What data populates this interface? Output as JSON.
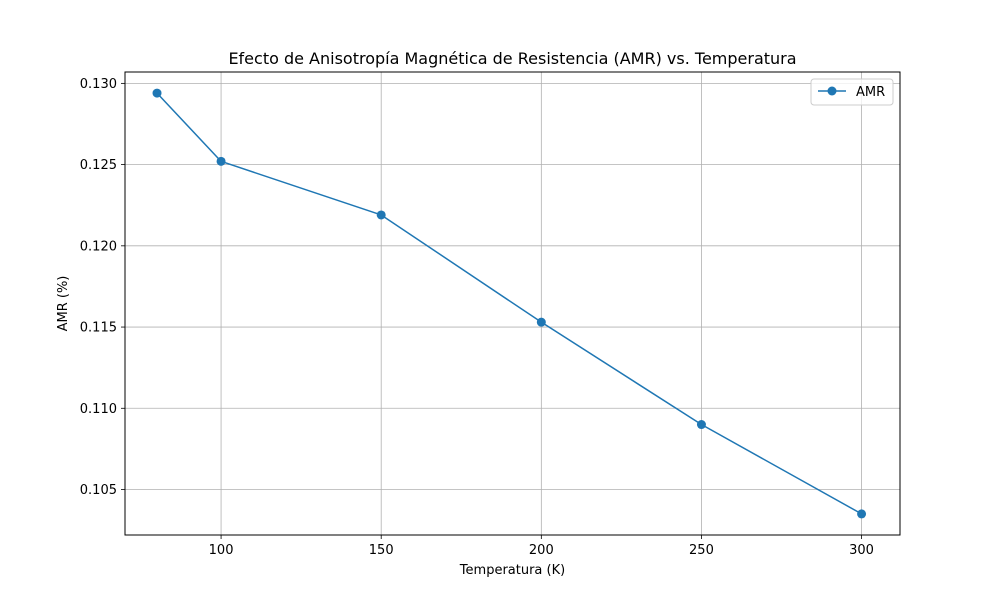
{
  "chart_data": {
    "type": "line",
    "title": "Efecto de Anisotropía Magnética de Resistencia (AMR) vs. Temperatura",
    "xlabel": "Temperatura (K)",
    "ylabel": "AMR (%)",
    "xlim": [
      70,
      312
    ],
    "ylim": [
      0.1022,
      0.1307
    ],
    "x_ticks": [
      100,
      150,
      200,
      250,
      300
    ],
    "y_ticks": [
      0.105,
      0.11,
      0.115,
      0.12,
      0.125,
      0.13
    ],
    "x_tick_labels": [
      "100",
      "150",
      "200",
      "250",
      "300"
    ],
    "y_tick_labels": [
      "0.105",
      "0.110",
      "0.115",
      "0.120",
      "0.125",
      "0.130"
    ],
    "grid": true,
    "legend_position": "top-right",
    "series": [
      {
        "name": "AMR",
        "color": "#1f77b4",
        "marker": "circle",
        "x": [
          80,
          100,
          150,
          200,
          250,
          300
        ],
        "y": [
          0.1294,
          0.1252,
          0.1219,
          0.1153,
          0.109,
          0.1035
        ]
      }
    ]
  }
}
